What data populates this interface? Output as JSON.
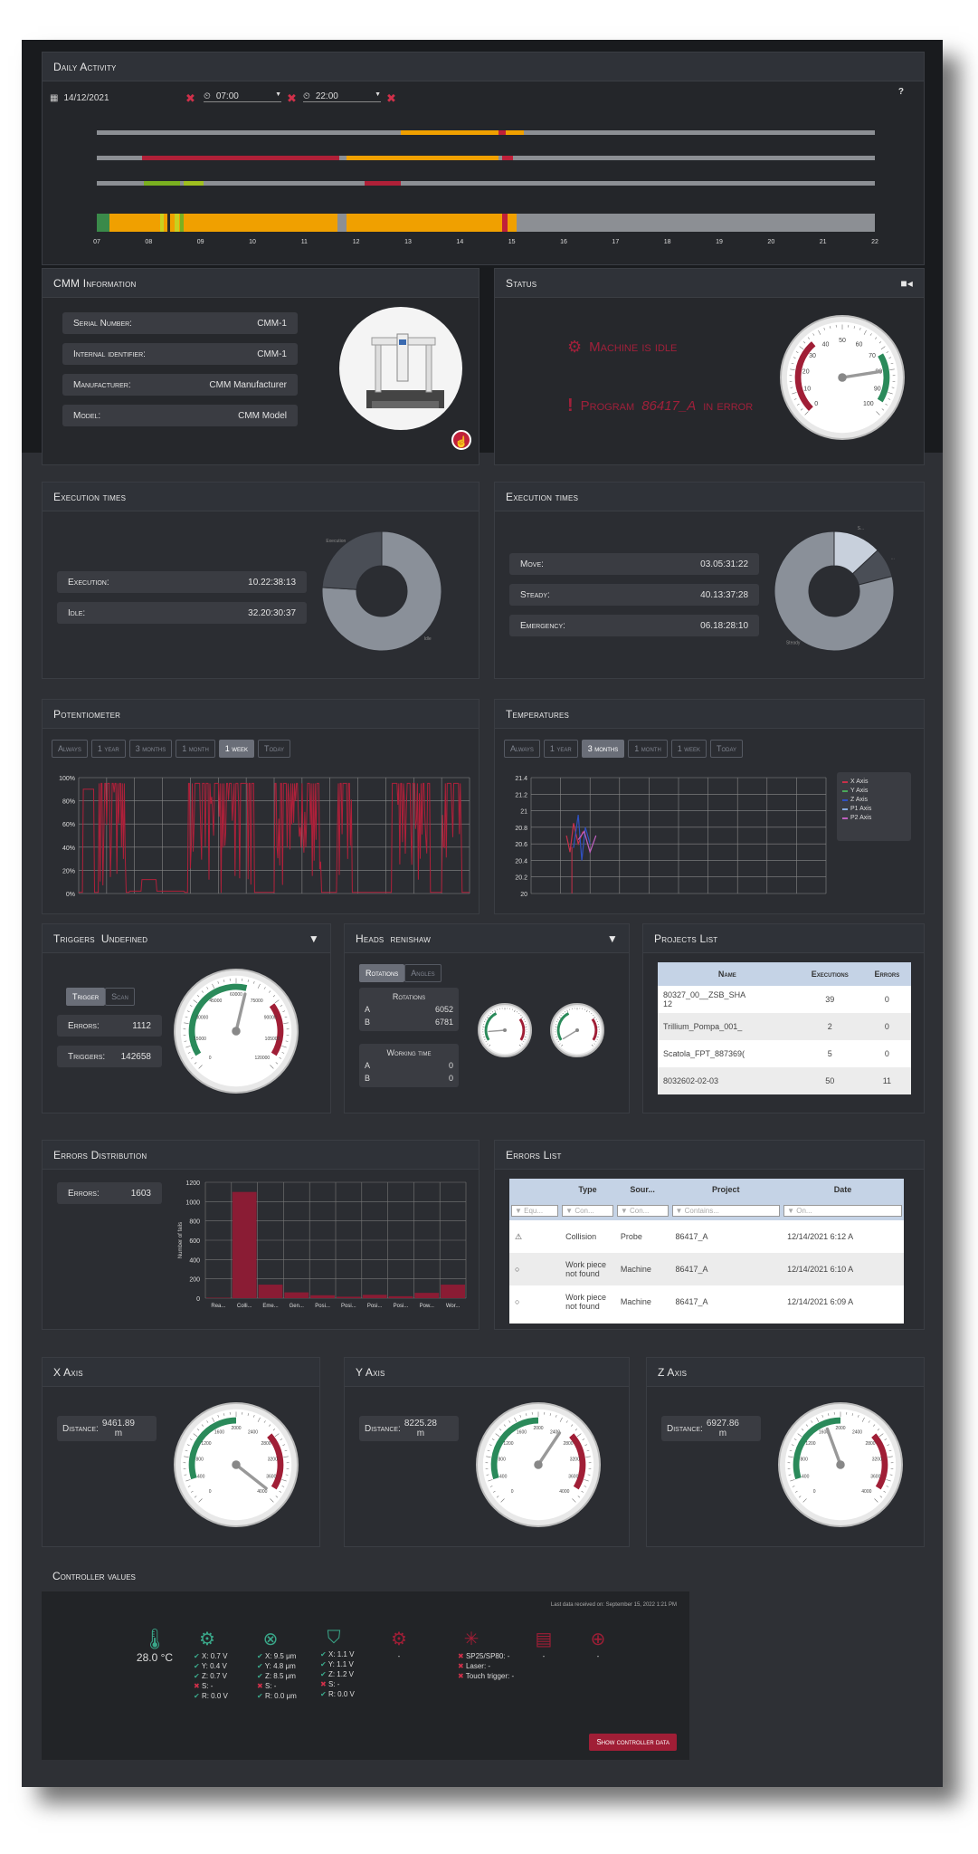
{
  "daily": {
    "title": "Daily Activity",
    "date": "14/12/2021",
    "from": "07:00",
    "to": "22:00",
    "help": "?",
    "hours": [
      "07",
      "08",
      "09",
      "10",
      "11",
      "12",
      "13",
      "14",
      "15",
      "16",
      "17",
      "18",
      "19",
      "20",
      "21",
      "22"
    ]
  },
  "cmm": {
    "title": "CMM Information",
    "fields": [
      {
        "label": "Serial Number:",
        "value": "CMM-1"
      },
      {
        "label": "Internal identifier:",
        "value": "CMM-1"
      },
      {
        "label": "Manufacturer:",
        "value": "CMM Manufacturer"
      },
      {
        "label": "Model:",
        "value": "CMM Model"
      }
    ]
  },
  "status": {
    "title": "Status",
    "idle": "Machine is idle",
    "prog_pre": "Program",
    "prog_name": "86417_A",
    "prog_post": "in error",
    "gauge_ticks": [
      "0",
      "10",
      "20",
      "30",
      "40",
      "50",
      "60",
      "70",
      "80",
      "90",
      "100"
    ],
    "gauge_value": 80
  },
  "exec1": {
    "title": "Execution times",
    "rows": [
      {
        "label": "Execution:",
        "value": "10.22:38:13"
      },
      {
        "label": "Idle:",
        "value": "32.20:30:37"
      }
    ],
    "donut": [
      {
        "label": "Idle",
        "value": 76
      },
      {
        "label": "Execution",
        "value": 24
      }
    ],
    "colors": [
      "#8a9099",
      "#4a4e56"
    ]
  },
  "exec2": {
    "title": "Execution times",
    "rows": [
      {
        "label": "Move:",
        "value": "03.05:31:22"
      },
      {
        "label": "Steady:",
        "value": "40.13:37:28"
      },
      {
        "label": "Emergency:",
        "value": "06.18:28:10"
      }
    ],
    "donut": [
      {
        "label": "S...",
        "value": 13
      },
      {
        "label": "...",
        "value": 8
      },
      {
        "label": "Steady",
        "value": 79
      }
    ],
    "colors": [
      "#c8d0dc",
      "#4a4e56",
      "#8a9099"
    ]
  },
  "potentiometer": {
    "title": "Potentiometer",
    "tabs": [
      "Always",
      "1 year",
      "3 months",
      "1 month",
      "1 week",
      "Today"
    ],
    "active": 4
  },
  "temperatures": {
    "title": "Temperatures",
    "tabs": [
      "Always",
      "1 year",
      "3 months",
      "1 month",
      "1 week",
      "Today"
    ],
    "active": 2,
    "legend": [
      {
        "name": "X Axis",
        "color": "#c8304a"
      },
      {
        "name": "Y Axis",
        "color": "#4ba85a"
      },
      {
        "name": "Z Axis",
        "color": "#3050c0"
      },
      {
        "name": "P1 Axis",
        "color": "#8ad"
      },
      {
        "name": "P2 Axis",
        "color": "#c060c0"
      }
    ]
  },
  "triggers": {
    "title": "Triggers",
    "sub": "Undefined",
    "tabs": [
      "Trigger",
      "Scan"
    ],
    "errors_label": "Errors:",
    "errors": "1112",
    "trig_label": "Triggers:",
    "trig": "142658",
    "gauge_ticks": [
      "0",
      "15000",
      "30000",
      "45000",
      "60000",
      "75000",
      "90000",
      "105000",
      "120000"
    ]
  },
  "heads": {
    "title": "Heads",
    "sub": "renishaw",
    "tabs": [
      "Rotations",
      "Angles"
    ],
    "rot_title": "Rotations",
    "rotA": "6052",
    "rotB": "6781",
    "work_title": "Working time",
    "workA": "0",
    "workB": "0",
    "A": "A",
    "B": "B"
  },
  "projects": {
    "title": "Projects List",
    "cols": [
      "Name",
      "Executions",
      "Errors"
    ],
    "rows": [
      [
        "80327_00__ZSB_SHA\n12",
        "39",
        "0"
      ],
      [
        "Trillium_Pompa_001_",
        "2",
        "0"
      ],
      [
        "Scatola_FPT_887369(",
        "5",
        "0"
      ],
      [
        "8032602-02-03",
        "50",
        "11"
      ]
    ]
  },
  "errdist": {
    "title": "Errors Distribution",
    "label": "Errors:",
    "value": "1603",
    "ylabel": "Number of fails"
  },
  "errlist": {
    "title": "Errors List",
    "cols": [
      "",
      "Type",
      "Sour...",
      "Project",
      "Date"
    ],
    "filters": [
      "Equ...",
      "Con...",
      "Con...",
      "Contains...",
      "On..."
    ],
    "rows": [
      [
        "⚠",
        "Collision",
        "Probe",
        "86417_A",
        "12/14/2021 6:12 A"
      ],
      [
        "○",
        "Work piece not found",
        "Machine",
        "86417_A",
        "12/14/2021 6:10 A"
      ],
      [
        "○",
        "Work piece not found",
        "Machine",
        "86417_A",
        "12/14/2021 6:09 A"
      ]
    ]
  },
  "axes": [
    {
      "title": "X Axis",
      "label": "Distance:",
      "value": "9461.89",
      "unit": "m",
      "needle": 3900
    },
    {
      "title": "Y Axis",
      "label": "Distance:",
      "value": "8225.28",
      "unit": "m",
      "needle": 2500
    },
    {
      "title": "Z Axis",
      "label": "Distance:",
      "value": "6927.86",
      "unit": "m",
      "needle": 1700
    }
  ],
  "axis_ticks": [
    "0",
    "400",
    "800",
    "1200",
    "1600",
    "2000",
    "2400",
    "2800",
    "3200",
    "3600",
    "4000"
  ],
  "controller": {
    "title": "Controller values",
    "last": "Last data received on: September 15, 2022 1:21 PM",
    "temp": "28.0 °C",
    "button": "Show controller data",
    "g1": [
      "X: 0.7 V",
      "Y: 0.4 V",
      "Z: 0.7 V",
      "S: -",
      "R: 0.0 V"
    ],
    "g1ok": [
      1,
      1,
      1,
      0,
      1
    ],
    "g2": [
      "X: 9.5 μm",
      "Y: 4.8 μm",
      "Z: 8.5 μm",
      "S: -",
      "R: 0.0 μm"
    ],
    "g2ok": [
      1,
      1,
      1,
      0,
      1
    ],
    "g3": [
      "X: 1.1 V",
      "Y: 1.1 V",
      "Z: 1.2 V",
      "S: -",
      "R: 0.0 V"
    ],
    "g3ok": [
      1,
      1,
      1,
      0,
      1
    ],
    "g4": "-",
    "g5": [
      "SP25/SP80: -",
      "Laser: -",
      "Touch trigger: -"
    ],
    "g6": "-",
    "g7": "-"
  },
  "chart_data": [
    {
      "type": "bar",
      "title": "Errors Distribution",
      "ylabel": "Number of fails",
      "categories": [
        "Rea...",
        "Colli...",
        "Eme...",
        "Gen...",
        "Posi...",
        "Posi...",
        "Posi...",
        "Posi...",
        "Pow...",
        "Wor..."
      ],
      "values": [
        5,
        1100,
        140,
        60,
        30,
        15,
        35,
        20,
        55,
        140
      ],
      "ylim": [
        0,
        1200
      ],
      "yticks": [
        "0",
        "200",
        "400",
        "600",
        "800",
        "1000",
        "1200"
      ]
    },
    {
      "type": "line",
      "title": "Potentiometer",
      "ylim": [
        0,
        100
      ],
      "yticks": [
        "0%",
        "20%",
        "40%",
        "60%",
        "80%",
        "100%"
      ]
    },
    {
      "type": "line",
      "title": "Temperatures",
      "ylim": [
        20,
        21.4
      ],
      "yticks": [
        "20",
        "20.2",
        "20.4",
        "20.6",
        "20.8",
        "21",
        "21.2",
        "21.4"
      ]
    }
  ]
}
